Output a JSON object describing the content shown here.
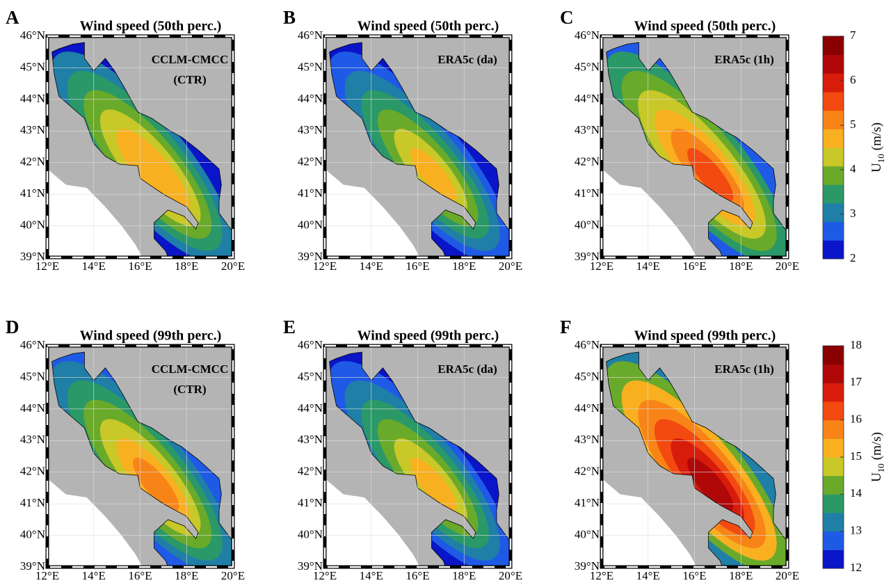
{
  "map_axes": {
    "lat_ticks": [
      {
        "value": 39,
        "label": "39°N"
      },
      {
        "value": 40,
        "label": "40°N"
      },
      {
        "value": 41,
        "label": "41°N"
      },
      {
        "value": 42,
        "label": "42°N"
      },
      {
        "value": 43,
        "label": "43°N"
      },
      {
        "value": 44,
        "label": "44°N"
      },
      {
        "value": 45,
        "label": "45°N"
      },
      {
        "value": 46,
        "label": "46°N"
      }
    ],
    "lon_ticks": [
      {
        "value": 12,
        "label": "12°E"
      },
      {
        "value": 14,
        "label": "14°E"
      },
      {
        "value": 16,
        "label": "16°E"
      },
      {
        "value": 18,
        "label": "18°E"
      },
      {
        "value": 20,
        "label": "20°E"
      }
    ]
  },
  "panels": [
    {
      "letter": "A",
      "title": "Wind speed (50th perc.)",
      "label": [
        "CCLM-CMCC",
        "(CTR)"
      ]
    },
    {
      "letter": "B",
      "title": "Wind speed (50th perc.)",
      "label": [
        "ERA5c (da)"
      ]
    },
    {
      "letter": "C",
      "title": "Wind speed (50th perc.)",
      "label": [
        "ERA5c (1h)"
      ]
    },
    {
      "letter": "D",
      "title": "Wind speed (99th perc.)",
      "label": [
        "CCLM-CMCC",
        "(CTR)"
      ]
    },
    {
      "letter": "E",
      "title": "Wind speed (99th perc.)",
      "label": [
        "ERA5c (da)"
      ]
    },
    {
      "letter": "F",
      "title": "Wind speed (99th perc.)",
      "label": [
        "ERA5c (1h)"
      ]
    }
  ],
  "colorbars": [
    {
      "lim": [
        2,
        7
      ],
      "ticks": [
        2,
        3,
        4,
        5,
        6,
        7
      ],
      "colors": [
        "#0a14c8",
        "#1f5ae6",
        "#1f7fa6",
        "#2b9868",
        "#6aaa2a",
        "#c8c828",
        "#f8b020",
        "#f88418",
        "#f24a10",
        "#d81c0c",
        "#b00808",
        "#8a0000"
      ],
      "label": {
        "symbol": "U",
        "subscript": "10",
        "unit": "(m/s)"
      }
    },
    {
      "lim": [
        12,
        18
      ],
      "ticks": [
        12,
        13,
        14,
        15,
        16,
        17,
        18
      ],
      "colors": [
        "#0a14c8",
        "#1f5ae6",
        "#1f7fa6",
        "#2b9868",
        "#6aaa2a",
        "#c8c828",
        "#f8b020",
        "#f88418",
        "#f24a10",
        "#d81c0c",
        "#b00808",
        "#8a0000"
      ],
      "label": {
        "symbol": "U",
        "subscript": "10",
        "unit": "(m/s)"
      }
    }
  ]
}
